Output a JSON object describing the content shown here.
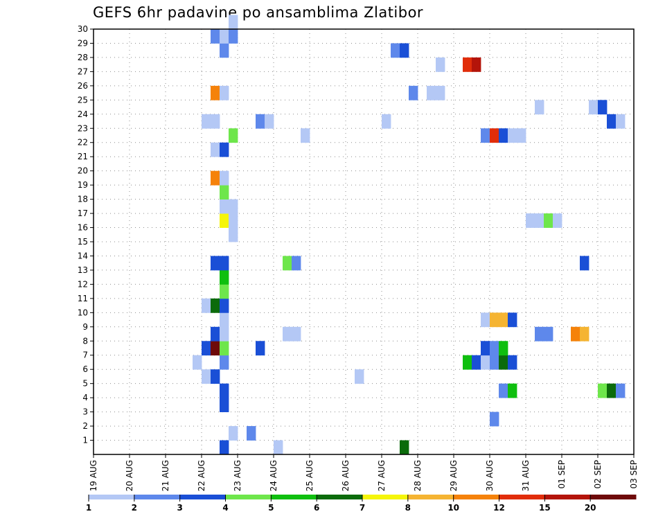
{
  "title": "GEFS 6hr padavine po ansamblima Zlatibor",
  "chart_data": {
    "type": "heatmap",
    "title": "GEFS 6hr padavine po ansamblima Zlatibor",
    "xlabel": "",
    "ylabel": "",
    "x_tick_labels": [
      "19 AUG",
      "20 AUG",
      "21 AUG",
      "22 AUG",
      "23 AUG",
      "24 AUG",
      "25 AUG",
      "26 AUG",
      "27 AUG",
      "28 AUG",
      "29 AUG",
      "30 AUG",
      "31 AUG",
      "01 SEP",
      "02 SEP",
      "03 SEP"
    ],
    "x_step_per_day": 4,
    "xlim": [
      0,
      60
    ],
    "ylim": [
      0,
      30
    ],
    "y_tick_labels": [
      "1",
      "2",
      "3",
      "4",
      "5",
      "6",
      "7",
      "8",
      "9",
      "10",
      "11",
      "12",
      "13",
      "14",
      "15",
      "16",
      "17",
      "18",
      "19",
      "20",
      "21",
      "22",
      "23",
      "24",
      "25",
      "26",
      "27",
      "28",
      "29",
      "30"
    ],
    "grid": true,
    "legend": {
      "placement": "bottom",
      "levels": [
        "1",
        "2",
        "3",
        "4",
        "5",
        "6",
        "7",
        "8",
        "10",
        "12",
        "15",
        "20"
      ],
      "colors": [
        "#b4c8f5",
        "#5e88eb",
        "#1a4fd6",
        "#6ee64b",
        "#0fbf0f",
        "#0b6b0b",
        "#f5f50a",
        "#f5b432",
        "#f5820a",
        "#e12d0a",
        "#b4140a",
        "#6e0a0a"
      ]
    },
    "cells": [
      {
        "x": 14,
        "y": 0,
        "c": 2
      },
      {
        "x": 20,
        "y": 0,
        "c": 0
      },
      {
        "x": 34,
        "y": 0,
        "c": 5
      },
      {
        "x": 15,
        "y": 1,
        "c": 0
      },
      {
        "x": 17,
        "y": 1,
        "c": 1
      },
      {
        "x": 44,
        "y": 2,
        "c": 1
      },
      {
        "x": 14,
        "y": 3,
        "c": 2
      },
      {
        "x": 14,
        "y": 4,
        "c": 2
      },
      {
        "x": 45,
        "y": 4,
        "c": 1
      },
      {
        "x": 46,
        "y": 4,
        "c": 4
      },
      {
        "x": 56,
        "y": 4,
        "c": 3
      },
      {
        "x": 57,
        "y": 4,
        "c": 5
      },
      {
        "x": 58,
        "y": 4,
        "c": 1
      },
      {
        "x": 12,
        "y": 5,
        "c": 0
      },
      {
        "x": 13,
        "y": 5,
        "c": 2
      },
      {
        "x": 29,
        "y": 5,
        "c": 0
      },
      {
        "x": 11,
        "y": 6,
        "c": 0
      },
      {
        "x": 14,
        "y": 6,
        "c": 1
      },
      {
        "x": 41,
        "y": 6,
        "c": 4
      },
      {
        "x": 42,
        "y": 6,
        "c": 2
      },
      {
        "x": 43,
        "y": 6,
        "c": 0
      },
      {
        "x": 44,
        "y": 6,
        "c": 1
      },
      {
        "x": 45,
        "y": 6,
        "c": 5
      },
      {
        "x": 46,
        "y": 6,
        "c": 2
      },
      {
        "x": 12,
        "y": 7,
        "c": 2
      },
      {
        "x": 13,
        "y": 7,
        "c": 11
      },
      {
        "x": 14,
        "y": 7,
        "c": 3
      },
      {
        "x": 18,
        "y": 7,
        "c": 2
      },
      {
        "x": 43,
        "y": 7,
        "c": 2
      },
      {
        "x": 44,
        "y": 7,
        "c": 1
      },
      {
        "x": 45,
        "y": 7,
        "c": 4
      },
      {
        "x": 13,
        "y": 8,
        "c": 2
      },
      {
        "x": 14,
        "y": 8,
        "c": 0
      },
      {
        "x": 21,
        "y": 8,
        "c": 0
      },
      {
        "x": 22,
        "y": 8,
        "c": 0
      },
      {
        "x": 49,
        "y": 8,
        "c": 1
      },
      {
        "x": 50,
        "y": 8,
        "c": 1
      },
      {
        "x": 53,
        "y": 8,
        "c": 8
      },
      {
        "x": 54,
        "y": 8,
        "c": 7
      },
      {
        "x": 14,
        "y": 9,
        "c": 0
      },
      {
        "x": 43,
        "y": 9,
        "c": 0
      },
      {
        "x": 44,
        "y": 9,
        "c": 7
      },
      {
        "x": 45,
        "y": 9,
        "c": 7
      },
      {
        "x": 46,
        "y": 9,
        "c": 2
      },
      {
        "x": 12,
        "y": 10,
        "c": 0
      },
      {
        "x": 13,
        "y": 10,
        "c": 5
      },
      {
        "x": 14,
        "y": 10,
        "c": 2
      },
      {
        "x": 14,
        "y": 11,
        "c": 3
      },
      {
        "x": 14,
        "y": 12,
        "c": 4
      },
      {
        "x": 13,
        "y": 13,
        "c": 2
      },
      {
        "x": 14,
        "y": 13,
        "c": 2
      },
      {
        "x": 21,
        "y": 13,
        "c": 3
      },
      {
        "x": 22,
        "y": 13,
        "c": 1
      },
      {
        "x": 54,
        "y": 13,
        "c": 2
      },
      {
        "x": 15,
        "y": 15,
        "c": 0
      },
      {
        "x": 14,
        "y": 16,
        "c": 6
      },
      {
        "x": 15,
        "y": 16,
        "c": 0
      },
      {
        "x": 48,
        "y": 16,
        "c": 0
      },
      {
        "x": 49,
        "y": 16,
        "c": 0
      },
      {
        "x": 50,
        "y": 16,
        "c": 3
      },
      {
        "x": 51,
        "y": 16,
        "c": 0
      },
      {
        "x": 14,
        "y": 17,
        "c": 0
      },
      {
        "x": 15,
        "y": 17,
        "c": 0
      },
      {
        "x": 14,
        "y": 18,
        "c": 3
      },
      {
        "x": 13,
        "y": 19,
        "c": 8
      },
      {
        "x": 14,
        "y": 19,
        "c": 0
      },
      {
        "x": 13,
        "y": 21,
        "c": 0
      },
      {
        "x": 14,
        "y": 21,
        "c": 2
      },
      {
        "x": 15,
        "y": 22,
        "c": 3
      },
      {
        "x": 23,
        "y": 22,
        "c": 0
      },
      {
        "x": 43,
        "y": 22,
        "c": 1
      },
      {
        "x": 44,
        "y": 22,
        "c": 9
      },
      {
        "x": 45,
        "y": 22,
        "c": 2
      },
      {
        "x": 46,
        "y": 22,
        "c": 0
      },
      {
        "x": 47,
        "y": 22,
        "c": 0
      },
      {
        "x": 12,
        "y": 23,
        "c": 0
      },
      {
        "x": 13,
        "y": 23,
        "c": 0
      },
      {
        "x": 18,
        "y": 23,
        "c": 1
      },
      {
        "x": 19,
        "y": 23,
        "c": 0
      },
      {
        "x": 32,
        "y": 23,
        "c": 0
      },
      {
        "x": 57,
        "y": 23,
        "c": 2
      },
      {
        "x": 58,
        "y": 23,
        "c": 0
      },
      {
        "x": 49,
        "y": 24,
        "c": 0
      },
      {
        "x": 55,
        "y": 24,
        "c": 0
      },
      {
        "x": 56,
        "y": 24,
        "c": 2
      },
      {
        "x": 13,
        "y": 25,
        "c": 8
      },
      {
        "x": 14,
        "y": 25,
        "c": 0
      },
      {
        "x": 35,
        "y": 25,
        "c": 1
      },
      {
        "x": 37,
        "y": 25,
        "c": 0
      },
      {
        "x": 38,
        "y": 25,
        "c": 0
      },
      {
        "x": 38,
        "y": 27,
        "c": 0
      },
      {
        "x": 41,
        "y": 27,
        "c": 9
      },
      {
        "x": 42,
        "y": 27,
        "c": 10
      },
      {
        "x": 14,
        "y": 28,
        "c": 1
      },
      {
        "x": 33,
        "y": 28,
        "c": 1
      },
      {
        "x": 34,
        "y": 28,
        "c": 2
      },
      {
        "x": 13,
        "y": 29,
        "c": 1
      },
      {
        "x": 14,
        "y": 29,
        "c": 0
      },
      {
        "x": 15,
        "y": 29,
        "c": 1
      },
      {
        "x": 15,
        "y": 30,
        "c": 0
      }
    ]
  }
}
